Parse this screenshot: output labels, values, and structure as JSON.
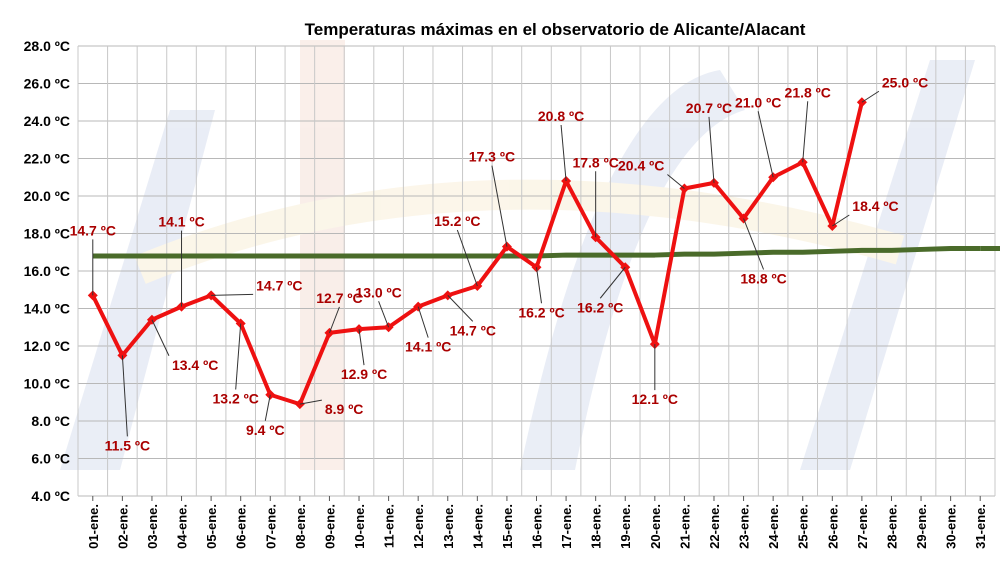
{
  "chart_data": {
    "type": "line",
    "title": "Temperaturas máximas en el observatorio de Alicante/Alacant",
    "xlabel": "",
    "ylabel": "",
    "ylim": [
      4,
      28
    ],
    "y_ticks": [
      "4.0 ºC",
      "6.0 ºC",
      "8.0 ºC",
      "10.0 ºC",
      "12.0 ºC",
      "14.0 ºC",
      "16.0 ºC",
      "18.0 ºC",
      "20.0 ºC",
      "22.0 ºC",
      "24.0 ºC",
      "26.0 ºC",
      "28.0 ºC"
    ],
    "categories": [
      "01-ene.",
      "02-ene.",
      "03-ene.",
      "04-ene.",
      "05-ene.",
      "06-ene.",
      "07-ene.",
      "08-ene.",
      "09-ene.",
      "10-ene.",
      "11-ene.",
      "12-ene.",
      "13-ene.",
      "14-ene.",
      "15-ene.",
      "16-ene.",
      "17-ene.",
      "18-ene.",
      "19-ene.",
      "20-ene.",
      "21-ene.",
      "22-ene.",
      "23-ene.",
      "24-ene.",
      "25-ene.",
      "26-ene.",
      "27-ene.",
      "28-ene.",
      "29-ene.",
      "30-ene.",
      "31-ene."
    ],
    "grid": true,
    "series": [
      {
        "name": "",
        "color": "#ee1111",
        "values": [
          14.7,
          11.5,
          13.4,
          14.1,
          14.7,
          13.2,
          9.4,
          8.9,
          12.7,
          12.9,
          13.0,
          14.1,
          14.7,
          15.2,
          17.3,
          16.2,
          20.8,
          17.8,
          16.2,
          12.1,
          20.4,
          20.7,
          18.8,
          21.0,
          21.8,
          18.4,
          25.0,
          null,
          null,
          null,
          null
        ]
      },
      {
        "name": "",
        "color": "#4a6b2a",
        "values": [
          16.8,
          16.8,
          16.8,
          16.8,
          16.8,
          16.8,
          16.8,
          16.8,
          16.8,
          16.8,
          16.8,
          16.8,
          16.8,
          16.8,
          16.8,
          16.8,
          16.85,
          16.85,
          16.85,
          16.85,
          16.9,
          16.9,
          16.95,
          17.0,
          17.0,
          17.05,
          17.1,
          17.1,
          17.15,
          17.2,
          17.2
        ]
      }
    ],
    "data_labels": [
      "14.7 ºC",
      "11.5 ºC",
      "13.4 ºC",
      "14.1 ºC",
      "14.7 ºC",
      "13.2 ºC",
      "9.4 ºC",
      "8.9 ºC",
      "12.7 ºC",
      "12.9 ºC",
      "13.0 ºC",
      "14.1 ºC",
      "14.7 ºC",
      "15.2 ºC",
      "17.3 ºC",
      "16.2 ºC",
      "20.8 ºC",
      "17.8 ºC",
      "16.2 ºC",
      "12.1 ºC",
      "20.4 ºC",
      "20.7 ºC",
      "18.8 ºC",
      "21.0 ºC",
      "21.8 ºC",
      "18.4 ºC",
      "25.0 ºC"
    ],
    "label_color": "#aa0000"
  }
}
